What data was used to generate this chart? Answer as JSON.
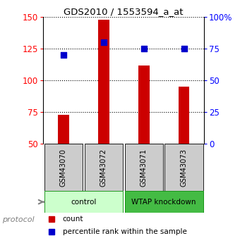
{
  "title": "GDS2010 / 1553594_a_at",
  "samples": [
    "GSM43070",
    "GSM43072",
    "GSM43071",
    "GSM43073"
  ],
  "counts": [
    73,
    148,
    112,
    95
  ],
  "percentile_ranks": [
    70,
    80,
    75,
    75
  ],
  "bar_color": "#cc0000",
  "dot_color": "#0000cc",
  "left_ylim": [
    50,
    150
  ],
  "right_ylim": [
    0,
    100
  ],
  "left_yticks": [
    50,
    75,
    100,
    125,
    150
  ],
  "right_yticks": [
    0,
    25,
    50,
    75,
    100
  ],
  "right_yticklabels": [
    "0",
    "25",
    "50",
    "75",
    "100%"
  ],
  "groups": [
    {
      "label": "control",
      "color": "#ccffcc",
      "samples": [
        0,
        1
      ]
    },
    {
      "label": "WTAP knockdown",
      "color": "#44bb44",
      "samples": [
        2,
        3
      ]
    }
  ],
  "protocol_label": "protocol",
  "legend_items": [
    {
      "label": "count",
      "color": "#cc0000"
    },
    {
      "label": "percentile rank within the sample",
      "color": "#0000cc"
    }
  ],
  "bg_color": "#ffffff",
  "tick_area_color": "#cccccc",
  "bar_width": 0.28
}
